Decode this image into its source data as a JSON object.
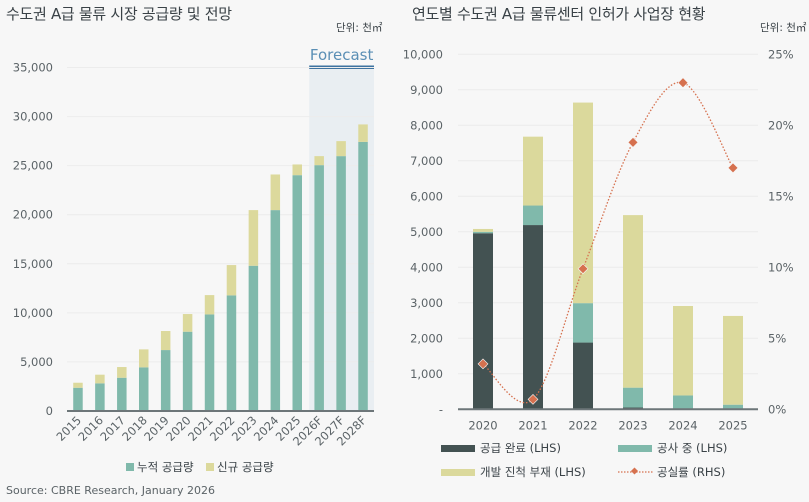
{
  "source": "Source: CBRE Research, January 2026",
  "colors": {
    "cumulative": "#80b9ab",
    "new": "#dcd99c",
    "completed": "#435252",
    "under_construction": "#80b9ab",
    "stalled": "#dbd99c",
    "vacancy": "#d6714f",
    "forecast_bar": "#3d73a0",
    "forecast_bg": "#e9eef2",
    "forecast_text": "#5b8fb5"
  },
  "chart_data": [
    {
      "type": "bar",
      "stacked": true,
      "title": "수도권 A급 물류 시장 공급량 및 전망",
      "unit_label": "단위: 천㎡",
      "forecast_label": "Forecast",
      "forecast_categories": [
        "2026F",
        "2027F",
        "2028F"
      ],
      "categories": [
        "2015",
        "2016",
        "2017",
        "2018",
        "2019",
        "2020",
        "2021",
        "2022",
        "2023",
        "2024",
        "2025",
        "2026F",
        "2027F",
        "2028F"
      ],
      "yticks": [
        "0",
        "5,000",
        "10,000",
        "15,000",
        "20,000",
        "25,000",
        "30,000",
        "35,000"
      ],
      "ylim": [
        0,
        35000
      ],
      "grid": true,
      "legend_position": "bottom",
      "series": [
        {
          "name": "누적 공급량",
          "values": [
            2370,
            2820,
            3390,
            4450,
            6210,
            8080,
            9840,
            11780,
            14800,
            20470,
            24030,
            25050,
            25970,
            27420
          ]
        },
        {
          "name": "신규 공급량",
          "values": [
            510,
            880,
            1090,
            1830,
            1940,
            1800,
            1970,
            3090,
            5670,
            3630,
            1090,
            920,
            1530,
            1780
          ]
        }
      ]
    },
    {
      "type": "bar",
      "stacked": true,
      "title": "연도별 수도권 A급 물류센터 인허가 사업장 현황",
      "unit_label": "단위: 천㎡",
      "categories": [
        "2020",
        "2021",
        "2022",
        "2023",
        "2024",
        "2025"
      ],
      "yticks": [
        "-",
        "1,000",
        "2,000",
        "3,000",
        "4,000",
        "5,000",
        "6,000",
        "7,000",
        "8,000",
        "9,000",
        "10,000"
      ],
      "y2ticks": [
        "0%",
        "5%",
        "10%",
        "15%",
        "20%",
        "25%"
      ],
      "ylim": [
        0,
        10000
      ],
      "y2lim": [
        0,
        25
      ],
      "grid": true,
      "legend_position": "bottom",
      "series": [
        {
          "name": "공급 완료 (LHS)",
          "axis": "left",
          "values": [
            4960,
            5190,
            1880,
            50,
            0,
            0
          ]
        },
        {
          "name": "공사 중 (LHS)",
          "axis": "left",
          "values": [
            40,
            550,
            1110,
            560,
            390,
            130
          ]
        },
        {
          "name": "개발 진척 부재 (LHS)",
          "axis": "left",
          "values": [
            80,
            1940,
            5650,
            4860,
            2520,
            2500
          ]
        },
        {
          "name": "공실률 (RHS)",
          "axis": "right",
          "type": "line",
          "values": [
            3.2,
            0.7,
            9.9,
            18.8,
            23.0,
            17.0
          ]
        }
      ]
    }
  ]
}
